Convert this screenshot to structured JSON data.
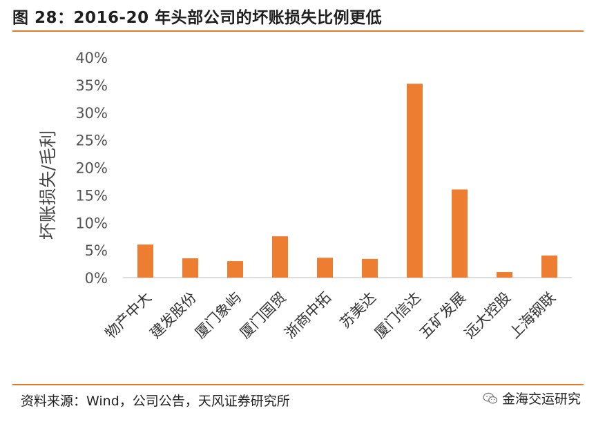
{
  "header": {
    "title": "图 28：2016-20 年头部公司的坏账损失比例更低"
  },
  "footer": {
    "source": "资料来源：Wind，公司公告，天风证券研究所",
    "watermark": "金海交运研究",
    "watermark_icon": "wechat-icon"
  },
  "colors": {
    "accent": "#e07b2f",
    "bar": "#ed7d31"
  },
  "chart_data": {
    "type": "bar",
    "title": "",
    "xlabel": "",
    "ylabel": "坏账损失/毛利",
    "categories": [
      "物产中大",
      "建发股份",
      "厦门象屿",
      "厦门国贸",
      "浙商中拓",
      "苏美达",
      "厦门信达",
      "五矿发展",
      "远大控股",
      "上海钢联"
    ],
    "values": [
      6.0,
      3.5,
      3.0,
      7.5,
      3.6,
      3.4,
      35.2,
      16.0,
      1.0,
      4.0
    ],
    "value_unit": "%",
    "ylim": [
      0,
      40
    ],
    "yticks": [
      0,
      5,
      10,
      15,
      20,
      25,
      30,
      35,
      40
    ],
    "ytick_labels": [
      "0%",
      "5%",
      "10%",
      "15%",
      "20%",
      "25%",
      "30%",
      "35%",
      "40%"
    ],
    "grid": false,
    "legend": "none"
  }
}
